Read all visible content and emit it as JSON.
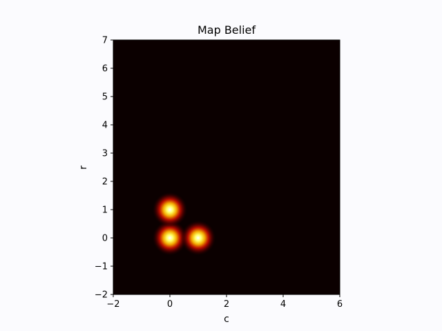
{
  "chart_data": {
    "type": "heatmap",
    "title": "Map Belief",
    "xlabel": "c",
    "ylabel": "r",
    "xlim": [
      -2,
      6
    ],
    "ylim": [
      -2,
      7
    ],
    "xticks": [
      -2,
      0,
      2,
      4,
      6
    ],
    "xtick_labels": [
      "−2",
      "0",
      "2",
      "4",
      "6"
    ],
    "yticks": [
      -2,
      -1,
      0,
      1,
      2,
      3,
      4,
      5,
      6,
      7
    ],
    "ytick_labels": [
      "−2",
      "−1",
      "0",
      "1",
      "2",
      "3",
      "4",
      "5",
      "6",
      "7"
    ],
    "colormap": "hot",
    "grid": false,
    "peaks": [
      {
        "c": 0,
        "r": 0,
        "value": 1.0
      },
      {
        "c": 0,
        "r": 1,
        "value": 1.0
      },
      {
        "c": 1,
        "r": 0,
        "value": 1.0
      }
    ],
    "peak_spread": 0.28,
    "background_color": "#0b0000",
    "figure_background": "#fbfbfe"
  }
}
